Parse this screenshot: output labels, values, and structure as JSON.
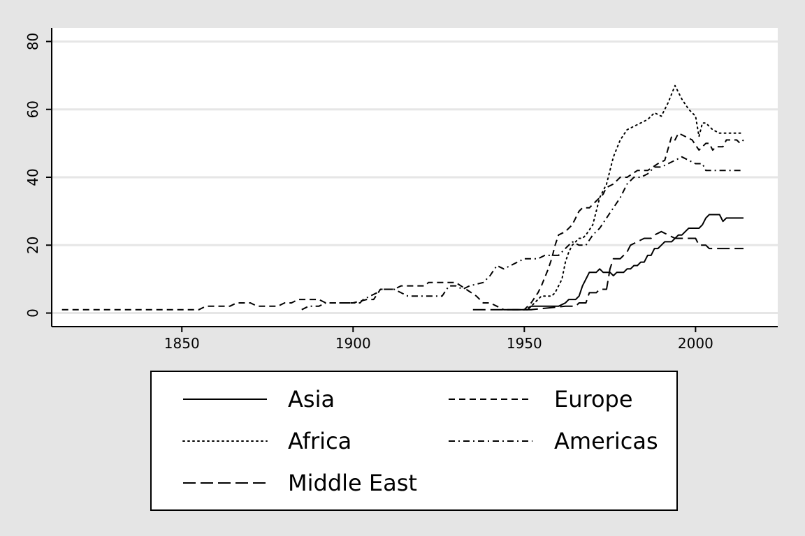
{
  "chart_data": {
    "type": "line",
    "title": "",
    "xlabel": "",
    "ylabel": "",
    "xlim": [
      1812,
      2024
    ],
    "ylim": [
      -4,
      84
    ],
    "x_ticks": [
      1850,
      1900,
      1950,
      2000
    ],
    "y_ticks": [
      0,
      20,
      40,
      60,
      80
    ],
    "grid": "horizontal",
    "legend_position": "bottom",
    "series": [
      {
        "name": "Asia",
        "dash": "solid",
        "points": [
          [
            1945,
            1
          ],
          [
            1951,
            1
          ],
          [
            1952,
            2
          ],
          [
            1960,
            2
          ],
          [
            1962,
            3
          ],
          [
            1963,
            4
          ],
          [
            1965,
            4
          ],
          [
            1966,
            5
          ],
          [
            1967,
            8
          ],
          [
            1968,
            10
          ],
          [
            1969,
            12
          ],
          [
            1971,
            12
          ],
          [
            1972,
            13
          ],
          [
            1973,
            12
          ],
          [
            1975,
            12
          ],
          [
            1976,
            11
          ],
          [
            1977,
            12
          ],
          [
            1979,
            12
          ],
          [
            1980,
            13
          ],
          [
            1981,
            13
          ],
          [
            1982,
            14
          ],
          [
            1983,
            14
          ],
          [
            1984,
            15
          ],
          [
            1985,
            15
          ],
          [
            1986,
            17
          ],
          [
            1987,
            17
          ],
          [
            1988,
            19
          ],
          [
            1989,
            19
          ],
          [
            1990,
            20
          ],
          [
            1991,
            21
          ],
          [
            1993,
            21
          ],
          [
            1994,
            22
          ],
          [
            1995,
            23
          ],
          [
            1996,
            23
          ],
          [
            1997,
            24
          ],
          [
            1998,
            25
          ],
          [
            2001,
            25
          ],
          [
            2002,
            26
          ],
          [
            2003,
            28
          ],
          [
            2004,
            29
          ],
          [
            2007,
            29
          ],
          [
            2008,
            27
          ],
          [
            2009,
            28
          ],
          [
            2014,
            28
          ]
        ]
      },
      {
        "name": "Europe",
        "dash": "short-dash",
        "points": [
          [
            1815,
            1
          ],
          [
            1855,
            1
          ],
          [
            1857,
            2
          ],
          [
            1864,
            2
          ],
          [
            1866,
            3
          ],
          [
            1870,
            3
          ],
          [
            1872,
            2
          ],
          [
            1878,
            2
          ],
          [
            1880,
            3
          ],
          [
            1882,
            3
          ],
          [
            1884,
            4
          ],
          [
            1890,
            4
          ],
          [
            1892,
            3
          ],
          [
            1900,
            3
          ],
          [
            1904,
            4
          ],
          [
            1906,
            4
          ],
          [
            1908,
            7
          ],
          [
            1912,
            7
          ],
          [
            1914,
            8
          ],
          [
            1916,
            8
          ],
          [
            1918,
            8
          ],
          [
            1921,
            8
          ],
          [
            1922,
            9
          ],
          [
            1930,
            9
          ],
          [
            1933,
            7
          ],
          [
            1936,
            5
          ],
          [
            1938,
            3
          ],
          [
            1940,
            3
          ],
          [
            1942,
            2
          ],
          [
            1944,
            1
          ],
          [
            1950,
            1
          ],
          [
            1952,
            3
          ],
          [
            1954,
            6
          ],
          [
            1955,
            8
          ],
          [
            1957,
            13
          ],
          [
            1958,
            16
          ],
          [
            1959,
            20
          ],
          [
            1960,
            23
          ],
          [
            1962,
            24
          ],
          [
            1964,
            26
          ],
          [
            1966,
            30
          ],
          [
            1967,
            31
          ],
          [
            1969,
            31
          ],
          [
            1971,
            33
          ],
          [
            1973,
            35
          ],
          [
            1974,
            37
          ],
          [
            1976,
            38
          ],
          [
            1978,
            40
          ],
          [
            1980,
            40
          ],
          [
            1983,
            42
          ],
          [
            1986,
            42
          ],
          [
            1989,
            44
          ],
          [
            1991,
            45
          ],
          [
            1993,
            52
          ],
          [
            1994,
            51
          ],
          [
            1995,
            53
          ],
          [
            1997,
            52
          ],
          [
            1999,
            51
          ],
          [
            2001,
            48
          ],
          [
            2003,
            50
          ],
          [
            2004,
            50
          ],
          [
            2005,
            48
          ],
          [
            2006,
            49
          ],
          [
            2008,
            49
          ],
          [
            2009,
            51
          ],
          [
            2012,
            51
          ],
          [
            2013,
            50
          ],
          [
            2014,
            51
          ]
        ]
      },
      {
        "name": "Africa",
        "dash": "dotted",
        "points": [
          [
            1950,
            1
          ],
          [
            1952,
            2
          ],
          [
            1953,
            3
          ],
          [
            1954,
            4
          ],
          [
            1955,
            5
          ],
          [
            1958,
            5
          ],
          [
            1959,
            6
          ],
          [
            1961,
            10
          ],
          [
            1962,
            15
          ],
          [
            1963,
            18
          ],
          [
            1964,
            20
          ],
          [
            1966,
            22
          ],
          [
            1967,
            22
          ],
          [
            1968,
            23
          ],
          [
            1970,
            26
          ],
          [
            1972,
            34
          ],
          [
            1974,
            38
          ],
          [
            1976,
            46
          ],
          [
            1978,
            51
          ],
          [
            1980,
            54
          ],
          [
            1982,
            55
          ],
          [
            1984,
            56
          ],
          [
            1986,
            57
          ],
          [
            1988,
            59
          ],
          [
            1990,
            58
          ],
          [
            1992,
            62
          ],
          [
            1994,
            67
          ],
          [
            1996,
            63
          ],
          [
            1998,
            60
          ],
          [
            2000,
            58
          ],
          [
            2001,
            52
          ],
          [
            2002,
            56
          ],
          [
            2003,
            56
          ],
          [
            2005,
            54
          ],
          [
            2007,
            53
          ],
          [
            2010,
            53
          ],
          [
            2012,
            53
          ],
          [
            2014,
            53
          ]
        ]
      },
      {
        "name": "Americas",
        "dash": "dash-dot",
        "points": [
          [
            1885,
            1
          ],
          [
            1887,
            2
          ],
          [
            1890,
            2
          ],
          [
            1892,
            3
          ],
          [
            1900,
            3
          ],
          [
            1902,
            3
          ],
          [
            1903,
            4
          ],
          [
            1905,
            5
          ],
          [
            1907,
            6
          ],
          [
            1908,
            7
          ],
          [
            1912,
            7
          ],
          [
            1914,
            6
          ],
          [
            1916,
            5
          ],
          [
            1919,
            5
          ],
          [
            1926,
            5
          ],
          [
            1928,
            8
          ],
          [
            1930,
            8
          ],
          [
            1932,
            7
          ],
          [
            1934,
            8
          ],
          [
            1938,
            9
          ],
          [
            1940,
            11
          ],
          [
            1942,
            14
          ],
          [
            1944,
            13
          ],
          [
            1946,
            14
          ],
          [
            1950,
            16
          ],
          [
            1952,
            16
          ],
          [
            1954,
            16
          ],
          [
            1956,
            17
          ],
          [
            1958,
            17
          ],
          [
            1960,
            17
          ],
          [
            1962,
            19
          ],
          [
            1964,
            21
          ],
          [
            1966,
            20
          ],
          [
            1968,
            20
          ],
          [
            1970,
            23
          ],
          [
            1972,
            25
          ],
          [
            1974,
            28
          ],
          [
            1976,
            31
          ],
          [
            1978,
            34
          ],
          [
            1980,
            38
          ],
          [
            1982,
            40
          ],
          [
            1984,
            40
          ],
          [
            1986,
            41
          ],
          [
            1988,
            43
          ],
          [
            1990,
            43
          ],
          [
            1992,
            44
          ],
          [
            1994,
            45
          ],
          [
            1996,
            46
          ],
          [
            1998,
            45
          ],
          [
            2000,
            44
          ],
          [
            2002,
            44
          ],
          [
            2003,
            42
          ],
          [
            2006,
            42
          ],
          [
            2010,
            42
          ],
          [
            2014,
            42
          ]
        ]
      },
      {
        "name": "Middle East",
        "dash": "long-dash",
        "points": [
          [
            1935,
            1
          ],
          [
            1945,
            1
          ],
          [
            1952,
            1
          ],
          [
            1962,
            2
          ],
          [
            1965,
            2
          ],
          [
            1966,
            3
          ],
          [
            1968,
            3
          ],
          [
            1969,
            6
          ],
          [
            1971,
            6
          ],
          [
            1972,
            7
          ],
          [
            1974,
            7
          ],
          [
            1975,
            13
          ],
          [
            1976,
            16
          ],
          [
            1978,
            16
          ],
          [
            1980,
            18
          ],
          [
            1981,
            20
          ],
          [
            1983,
            21
          ],
          [
            1985,
            22
          ],
          [
            1987,
            22
          ],
          [
            1988,
            23
          ],
          [
            1990,
            24
          ],
          [
            1992,
            23
          ],
          [
            1994,
            22
          ],
          [
            2000,
            22
          ],
          [
            2001,
            20
          ],
          [
            2003,
            20
          ],
          [
            2004,
            19
          ],
          [
            2008,
            19
          ],
          [
            2014,
            19
          ]
        ]
      }
    ]
  }
}
